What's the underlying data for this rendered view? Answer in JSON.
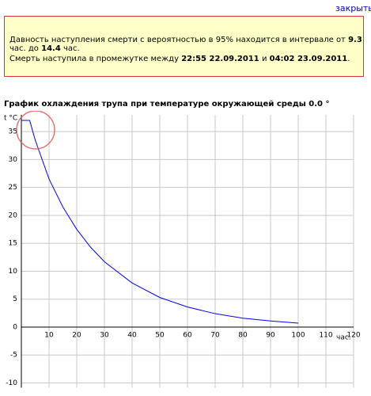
{
  "close_link": "закрыть",
  "notice": {
    "line1": [
      "Давность наступления смерти с вероятностью в 95% находится в интервале от ",
      "9.3",
      " час. до ",
      "14.4",
      " час."
    ],
    "line2": [
      "Смерть наступила в промежутке между ",
      "22:55 22.09.2011",
      " и ",
      "04:02 23.09.2011",
      "."
    ]
  },
  "chart_data": {
    "type": "line",
    "title": "График охлаждения трупа при температуре окружающей среды 0.0 °",
    "x_label": "час.",
    "y_label": "t °C",
    "x": [
      0,
      3,
      5,
      10,
      15,
      20,
      25,
      30,
      40,
      50,
      60,
      70,
      80,
      90,
      100
    ],
    "series": [
      {
        "name": "t",
        "color": "#0000ff",
        "values": [
          37,
          37,
          33.5,
          26.5,
          21.5,
          17.5,
          14.3,
          11.7,
          7.9,
          5.3,
          3.6,
          2.4,
          1.6,
          1.1,
          0.7
        ]
      }
    ],
    "xlim": [
      0,
      120
    ],
    "ylim": [
      -10,
      38
    ],
    "xticks": [
      10,
      20,
      30,
      40,
      50,
      60,
      70,
      80,
      90,
      100,
      110,
      120
    ],
    "yticks": [
      -10,
      -5,
      0,
      5,
      10,
      15,
      20,
      25,
      30,
      35
    ],
    "grid": true
  }
}
